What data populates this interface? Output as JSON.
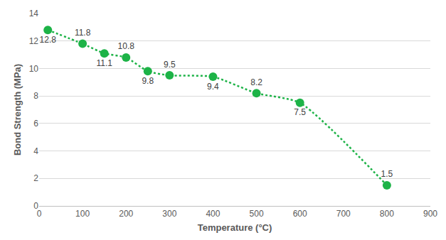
{
  "chart_data": {
    "type": "scatter",
    "x_label": "Temperature (°C)",
    "y_label": "Bond Strength (MPa)",
    "x": [
      20,
      100,
      150,
      200,
      250,
      300,
      400,
      500,
      600,
      800
    ],
    "values": [
      12.8,
      11.8,
      11.1,
      10.8,
      9.8,
      9.5,
      9.4,
      8.2,
      7.5,
      1.5
    ],
    "color": "#1db347",
    "marker": "circle",
    "line_style": "dotted",
    "data_labels": true,
    "xlim": [
      0,
      900
    ],
    "xticks": [
      0,
      100,
      200,
      300,
      400,
      500,
      600,
      700,
      800,
      900
    ],
    "ylim": [
      0,
      14
    ],
    "yticks": [
      0,
      2,
      4,
      6,
      8,
      10,
      12,
      14
    ],
    "grid": true
  }
}
